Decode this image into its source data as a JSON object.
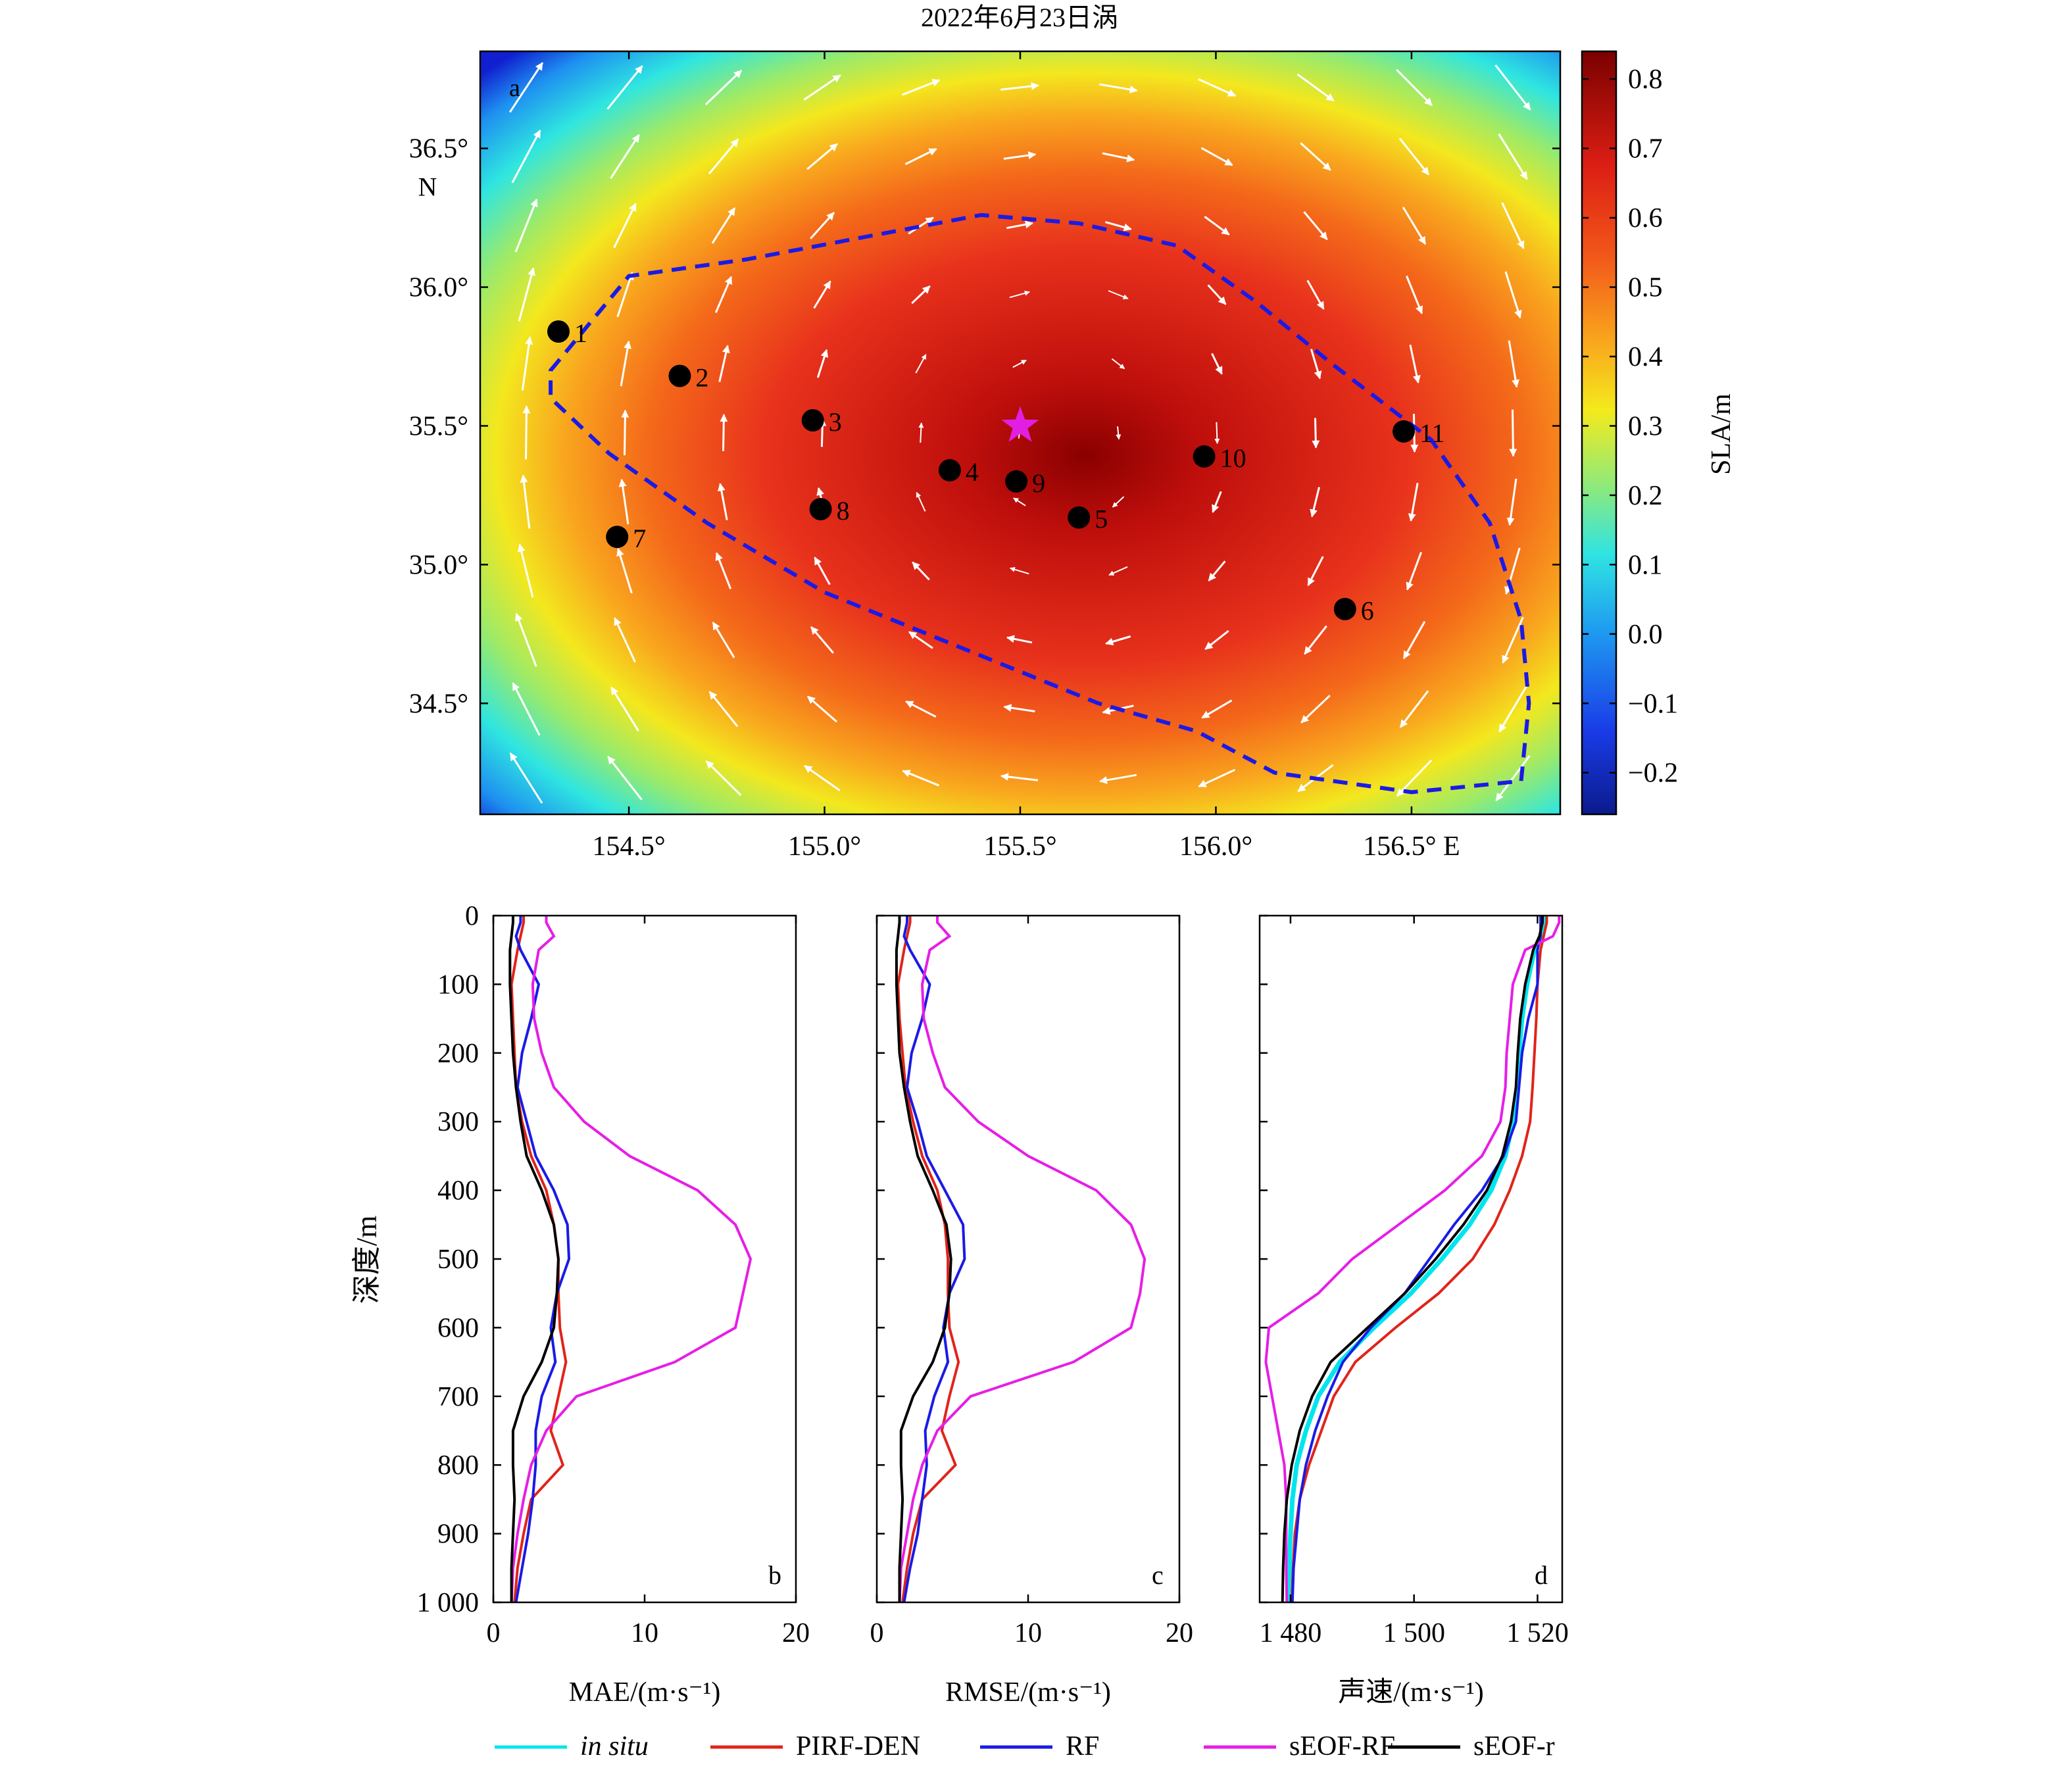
{
  "figure": {
    "title": "2022年6月23日涡",
    "legend": [
      {
        "label": "in situ",
        "italic": true,
        "color": "#00E5EE"
      },
      {
        "label": "PIRF-DEN",
        "color": "#E0241B"
      },
      {
        "label": "RF",
        "color": "#1A1AE6"
      },
      {
        "label": "sEOF-RF",
        "color": "#E61EE6"
      },
      {
        "label": "sEOF-r",
        "color": "#000000"
      }
    ]
  },
  "chart_data": [
    {
      "type": "heatmap",
      "panel": "a",
      "title": "2022年6月23日涡",
      "xlabel": "E",
      "ylabel": "N",
      "xlim": [
        154.12,
        156.88
      ],
      "ylim": [
        34.1,
        36.85
      ],
      "xticks": [
        {
          "v": 154.5,
          "label": "154.5°"
        },
        {
          "v": 155.0,
          "label": "155.0°"
        },
        {
          "v": 155.5,
          "label": "155.5°"
        },
        {
          "v": 156.0,
          "label": "156.0°"
        },
        {
          "v": 156.5,
          "label": "156.5° E"
        }
      ],
      "yticks": [
        {
          "v": 34.5,
          "label": "34.5°"
        },
        {
          "v": 35.0,
          "label": "35.0°"
        },
        {
          "v": 35.5,
          "label": "35.5°"
        },
        {
          "v": 36.0,
          "label": "36.0°"
        },
        {
          "v": 36.5,
          "label": "36.5°"
        }
      ],
      "colorbar": {
        "label": "SLA/m",
        "range": [
          -0.26,
          0.84
        ],
        "ticks": [
          {
            "v": 0.8,
            "label": "0.8"
          },
          {
            "v": 0.7,
            "label": "0.7"
          },
          {
            "v": 0.6,
            "label": "0.6"
          },
          {
            "v": 0.5,
            "label": "0.5"
          },
          {
            "v": 0.4,
            "label": "0.4"
          },
          {
            "v": 0.3,
            "label": "0.3"
          },
          {
            "v": 0.2,
            "label": "0.2"
          },
          {
            "v": 0.1,
            "label": "0.1"
          },
          {
            "v": 0.0,
            "label": "0.0"
          },
          {
            "v": -0.1,
            "label": "−0.1"
          },
          {
            "v": -0.2,
            "label": "−0.2"
          }
        ]
      },
      "stations": [
        {
          "id": "1",
          "lon": 154.32,
          "lat": 35.84
        },
        {
          "id": "2",
          "lon": 154.63,
          "lat": 35.68
        },
        {
          "id": "3",
          "lon": 154.97,
          "lat": 35.52
        },
        {
          "id": "4",
          "lon": 155.32,
          "lat": 35.34
        },
        {
          "id": "5",
          "lon": 155.65,
          "lat": 35.17
        },
        {
          "id": "6",
          "lon": 156.33,
          "lat": 34.84
        },
        {
          "id": "7",
          "lon": 154.47,
          "lat": 35.1
        },
        {
          "id": "8",
          "lon": 154.99,
          "lat": 35.2
        },
        {
          "id": "9",
          "lon": 155.49,
          "lat": 35.3
        },
        {
          "id": "10",
          "lon": 155.97,
          "lat": 35.39
        },
        {
          "id": "11",
          "lon": 156.48,
          "lat": 35.48
        }
      ],
      "eddy_center": {
        "lon": 155.5,
        "lat": 35.5
      },
      "eddy_boundary": [
        [
          154.3,
          35.7
        ],
        [
          154.5,
          36.04
        ],
        [
          154.8,
          36.1
        ],
        [
          155.1,
          36.18
        ],
        [
          155.4,
          36.26
        ],
        [
          155.65,
          36.23
        ],
        [
          155.9,
          36.15
        ],
        [
          156.1,
          35.95
        ],
        [
          156.3,
          35.72
        ],
        [
          156.55,
          35.45
        ],
        [
          156.7,
          35.15
        ],
        [
          156.78,
          34.8
        ],
        [
          156.8,
          34.5
        ],
        [
          156.78,
          34.22
        ],
        [
          156.5,
          34.18
        ],
        [
          156.15,
          34.25
        ],
        [
          155.95,
          34.4
        ],
        [
          155.7,
          34.5
        ],
        [
          155.35,
          34.7
        ],
        [
          155.0,
          34.9
        ],
        [
          154.7,
          35.15
        ],
        [
          154.45,
          35.4
        ],
        [
          154.3,
          35.6
        ]
      ]
    },
    {
      "type": "line",
      "panel": "b",
      "xlabel": "MAE/(m·s⁻¹)",
      "ylabel": "深度/m",
      "xlim": [
        0,
        20
      ],
      "ylim": [
        0,
        1000
      ],
      "xticks": [
        "0",
        "10",
        "20"
      ],
      "yticks": [
        "0",
        "100",
        "200",
        "300",
        "400",
        "500",
        "600",
        "700",
        "800",
        "900",
        "1 000"
      ],
      "y": [
        0,
        10,
        30,
        50,
        100,
        150,
        200,
        250,
        300,
        350,
        400,
        450,
        500,
        550,
        600,
        650,
        700,
        750,
        800,
        850,
        900,
        950,
        1000
      ],
      "series": [
        {
          "name": "PIRF-DEN",
          "values": [
            2.0,
            2.0,
            1.8,
            1.6,
            1.2,
            1.3,
            1.4,
            1.5,
            1.9,
            2.5,
            3.5,
            4.0,
            4.3,
            4.3,
            4.4,
            4.8,
            4.3,
            3.8,
            4.6,
            2.5,
            2.0,
            1.6,
            1.4
          ]
        },
        {
          "name": "RF",
          "values": [
            1.8,
            1.8,
            1.5,
            1.8,
            3.0,
            2.5,
            1.9,
            1.6,
            2.2,
            2.8,
            4.0,
            4.9,
            5.0,
            4.2,
            3.8,
            4.1,
            3.2,
            2.8,
            2.8,
            2.6,
            2.3,
            1.9,
            1.5
          ]
        },
        {
          "name": "sEOF-RF",
          "values": [
            3.5,
            3.5,
            4.0,
            3.0,
            2.6,
            2.7,
            3.2,
            4.0,
            6.0,
            9.0,
            13.5,
            16.0,
            17.0,
            16.5,
            16.0,
            12.0,
            5.5,
            3.5,
            2.5,
            2.0,
            1.6,
            1.3,
            1.2
          ]
        },
        {
          "name": "sEOF-r",
          "values": [
            1.3,
            1.3,
            1.2,
            1.1,
            1.1,
            1.2,
            1.3,
            1.5,
            1.8,
            2.2,
            3.2,
            4.0,
            4.3,
            4.2,
            4.0,
            3.2,
            2.0,
            1.3,
            1.3,
            1.4,
            1.3,
            1.2,
            1.2
          ]
        }
      ]
    },
    {
      "type": "line",
      "panel": "c",
      "xlabel": "RMSE/(m·s⁻¹)",
      "xlim": [
        0,
        20
      ],
      "ylim": [
        0,
        1000
      ],
      "xticks": [
        "0",
        "10",
        "20"
      ],
      "y": [
        0,
        10,
        30,
        50,
        100,
        150,
        200,
        250,
        300,
        350,
        400,
        450,
        500,
        550,
        600,
        650,
        700,
        750,
        800,
        850,
        900,
        950,
        1000
      ],
      "series": [
        {
          "name": "PIRF-DEN",
          "values": [
            2.2,
            2.2,
            2.0,
            1.8,
            1.4,
            1.5,
            1.7,
            1.9,
            2.4,
            3.0,
            4.0,
            4.5,
            4.7,
            4.7,
            4.8,
            5.4,
            4.8,
            4.3,
            5.2,
            3.0,
            2.4,
            2.0,
            1.7
          ]
        },
        {
          "name": "RF",
          "values": [
            2.0,
            2.0,
            1.8,
            2.2,
            3.5,
            3.0,
            2.3,
            2.0,
            2.7,
            3.3,
            4.5,
            5.7,
            5.8,
            4.8,
            4.4,
            4.7,
            3.8,
            3.2,
            3.3,
            3.0,
            2.7,
            2.2,
            1.8
          ]
        },
        {
          "name": "sEOF-RF",
          "values": [
            4.0,
            4.0,
            4.8,
            3.5,
            3.0,
            3.1,
            3.7,
            4.5,
            6.7,
            10.0,
            14.5,
            16.8,
            17.7,
            17.4,
            16.8,
            13.0,
            6.2,
            4.0,
            3.0,
            2.4,
            2.0,
            1.6,
            1.5
          ]
        },
        {
          "name": "sEOF-r",
          "values": [
            1.5,
            1.5,
            1.4,
            1.3,
            1.3,
            1.4,
            1.5,
            1.8,
            2.2,
            2.7,
            3.7,
            4.6,
            4.9,
            4.8,
            4.5,
            3.7,
            2.4,
            1.6,
            1.6,
            1.7,
            1.6,
            1.5,
            1.5
          ]
        }
      ]
    },
    {
      "type": "line",
      "panel": "d",
      "xlabel": "声速/(m·s⁻¹)",
      "xlim": [
        1475,
        1524
      ],
      "ylim": [
        0,
        1000
      ],
      "xticks": [
        "1 480",
        "1 500",
        "1 520"
      ],
      "y": [
        0,
        10,
        30,
        50,
        100,
        150,
        200,
        250,
        300,
        350,
        400,
        450,
        500,
        550,
        600,
        650,
        700,
        750,
        800,
        850,
        900,
        950,
        1000
      ],
      "series": [
        {
          "name": "in situ",
          "values": [
            1521.0,
            1521.0,
            1520.5,
            1519.5,
            1518.3,
            1517.5,
            1517.0,
            1516.8,
            1516.0,
            1514.8,
            1512.5,
            1509.0,
            1504.5,
            1499.5,
            1493.5,
            1488.0,
            1484.5,
            1482.5,
            1481.0,
            1480.3,
            1480.0,
            1479.8,
            1479.6
          ]
        },
        {
          "name": "PIRF-DEN",
          "values": [
            1521.5,
            1521.5,
            1521.0,
            1520.5,
            1520.0,
            1519.8,
            1519.5,
            1519.2,
            1518.8,
            1517.5,
            1515.5,
            1513.0,
            1509.5,
            1504.0,
            1497.0,
            1490.5,
            1487.0,
            1485.0,
            1483.0,
            1481.5,
            1480.7,
            1480.4,
            1480.2
          ]
        },
        {
          "name": "RF",
          "values": [
            1520.5,
            1520.5,
            1520.5,
            1520.0,
            1520.0,
            1518.5,
            1517.5,
            1517.0,
            1516.5,
            1514.5,
            1511.0,
            1506.5,
            1502.5,
            1498.5,
            1493.0,
            1488.5,
            1486.0,
            1484.0,
            1482.5,
            1481.5,
            1481.0,
            1480.5,
            1480.3
          ]
        },
        {
          "name": "sEOF-RF",
          "values": [
            1523.5,
            1523.5,
            1522.5,
            1518.0,
            1516.0,
            1515.5,
            1515.0,
            1514.8,
            1514.0,
            1511.0,
            1505.0,
            1497.5,
            1490.0,
            1484.5,
            1476.5,
            1476.0,
            1477.0,
            1478.0,
            1479.0,
            1479.3,
            1479.3,
            1479.3,
            1479.4
          ]
        },
        {
          "name": "sEOF-r",
          "values": [
            1520.8,
            1520.8,
            1520.3,
            1519.3,
            1518.0,
            1517.2,
            1516.8,
            1516.5,
            1515.7,
            1514.3,
            1511.8,
            1508.0,
            1503.5,
            1498.5,
            1492.5,
            1486.5,
            1483.5,
            1481.5,
            1480.2,
            1479.4,
            1479.0,
            1478.8,
            1478.7
          ]
        }
      ]
    }
  ]
}
